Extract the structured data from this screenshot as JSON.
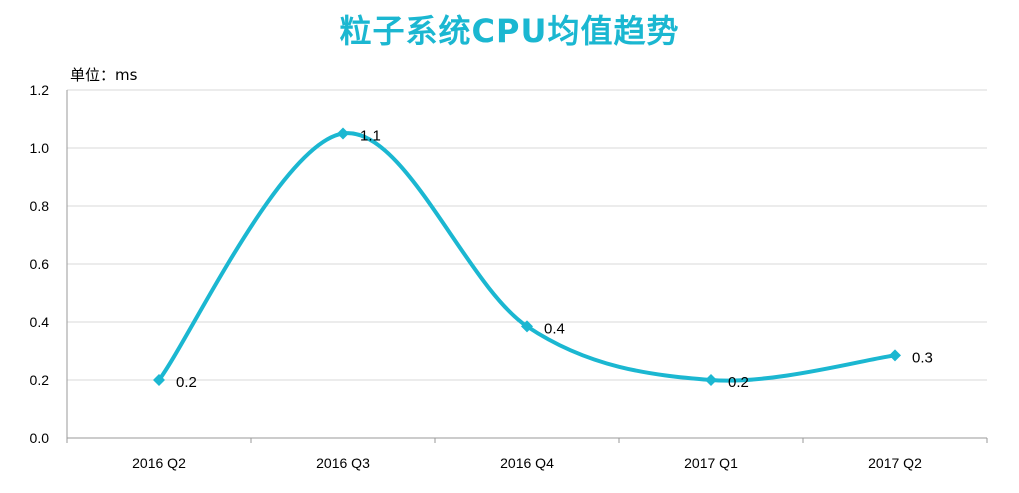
{
  "chart_data": {
    "type": "line",
    "title": "粒子系统CPU均值趋势",
    "unit_label": "单位：ms",
    "categories": [
      "2016 Q2",
      "2016 Q3",
      "2016 Q4",
      "2017 Q1",
      "2017 Q2"
    ],
    "values": [
      0.2,
      1.05,
      0.385,
      0.2,
      0.285
    ],
    "data_labels": [
      "0.2",
      "1.1",
      "0.4",
      "0.2",
      "0.3"
    ],
    "ylim": [
      0,
      1.2
    ],
    "yticks": [
      "0.0",
      "0.2",
      "0.4",
      "0.6",
      "0.8",
      "1.0",
      "1.2"
    ],
    "ytick_values": [
      0,
      0.2,
      0.4,
      0.6,
      0.8,
      1.0,
      1.2
    ],
    "grid": true,
    "smooth": true,
    "color": "#1BB7D1"
  }
}
